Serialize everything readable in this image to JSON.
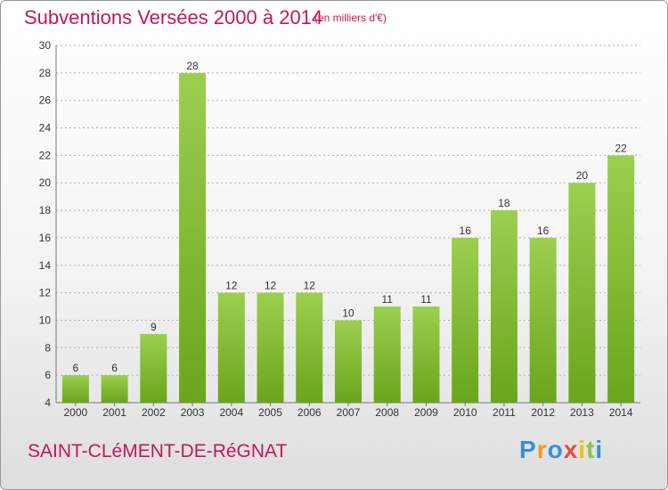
{
  "header": {
    "title": "Subventions Versées 2000 à 2014",
    "subtitle": "(en milliers d'€)"
  },
  "footer": {
    "town": "SAINT-CLéMENT-DE-RéGNAT",
    "logo_text": "Proxiti",
    "logo_colors": [
      "#3a8fd8",
      "#f39c12",
      "#3a8fd8",
      "#e74c3c",
      "#f1c40f",
      "#8bc34a",
      "#3a8fd8"
    ]
  },
  "colors": {
    "title": "#c2185b",
    "bar_light": "#9ccf4f",
    "bar_dark": "#6aa51c",
    "grid": "#b0b0b0"
  },
  "chart_data": {
    "type": "bar",
    "categories": [
      "2000",
      "2001",
      "2002",
      "2003",
      "2004",
      "2005",
      "2006",
      "2007",
      "2008",
      "2009",
      "2010",
      "2011",
      "2012",
      "2013",
      "2014"
    ],
    "values": [
      6,
      6,
      9,
      28,
      12,
      12,
      12,
      10,
      11,
      11,
      16,
      18,
      16,
      20,
      22
    ],
    "ylim": [
      4,
      30
    ],
    "yticks": [
      4,
      6,
      8,
      10,
      12,
      14,
      16,
      18,
      20,
      22,
      24,
      26,
      28,
      30
    ],
    "grid": true,
    "data_labels": true
  }
}
